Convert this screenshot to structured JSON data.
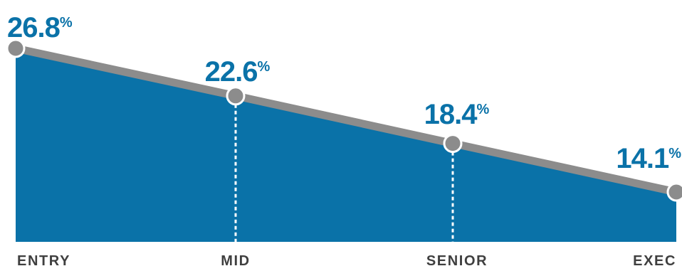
{
  "chart_data": {
    "type": "area",
    "categories": [
      "ENTRY",
      "MID",
      "SENIOR",
      "EXEC"
    ],
    "values": [
      26.8,
      22.6,
      18.4,
      14.1
    ],
    "value_labels": [
      "26.8",
      "22.6",
      "18.4",
      "14.1"
    ],
    "value_unit": "%",
    "title": "",
    "xlabel": "",
    "ylabel": "",
    "ylim": [
      0,
      26.8
    ],
    "grid": false,
    "legend": "none"
  },
  "colors": {
    "area_fill": "#0a72a8",
    "line": "#8c8c8c",
    "marker_fill": "#8c8c8c",
    "marker_stroke": "#ffffff",
    "value_text": "#0a72a8",
    "category_text": "#3f3f3f",
    "drop_line": "#ffffff"
  }
}
